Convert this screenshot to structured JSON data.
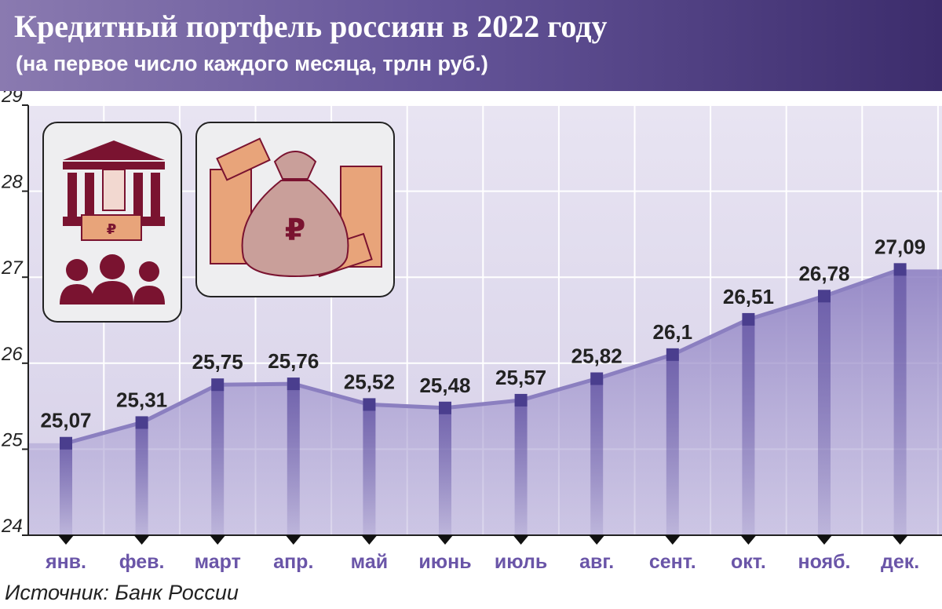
{
  "header": {
    "title": "Кредитный портфель россиян в 2022 году",
    "subtitle": "(на первое число каждого месяца, трлн руб.)"
  },
  "source": "Источник: Банк России",
  "icons": [
    "bank-building-icon",
    "hand-cash-icon",
    "people-icon",
    "money-bag-icon",
    "banknote-stack-icon"
  ],
  "colors": {
    "header_start": "#8a7ab0",
    "header_end": "#3c2c6c",
    "line": "#8b7fc0",
    "marker": "#4a3e8e",
    "xtick": "#6a55a8",
    "icon": "#7a1330",
    "chart_bg": "#e2def0"
  },
  "chart_data": {
    "type": "area",
    "title": "Кредитный портфель россиян в 2022 году",
    "subtitle": "(на первое число каждого месяца, трлн руб.)",
    "xlabel": "",
    "ylabel": "",
    "categories": [
      "янв.",
      "фев.",
      "март",
      "апр.",
      "май",
      "июнь",
      "июль",
      "авг.",
      "сент.",
      "окт.",
      "нояб.",
      "дек."
    ],
    "series": [
      {
        "values": [
          25.07,
          25.31,
          25.75,
          25.76,
          25.52,
          25.48,
          25.57,
          25.82,
          26.1,
          26.51,
          26.78,
          27.09
        ]
      }
    ],
    "data_labels": [
      "25,07",
      "25,31",
      "25,75",
      "25,76",
      "25,52",
      "25,48",
      "25,57",
      "25,82",
      "26,1",
      "26,51",
      "26,78",
      "27,09"
    ],
    "y_ticks": [
      "24",
      "25",
      "26",
      "27",
      "28",
      "29"
    ],
    "ylim": [
      24,
      29
    ],
    "grid": true,
    "legend": "none"
  }
}
